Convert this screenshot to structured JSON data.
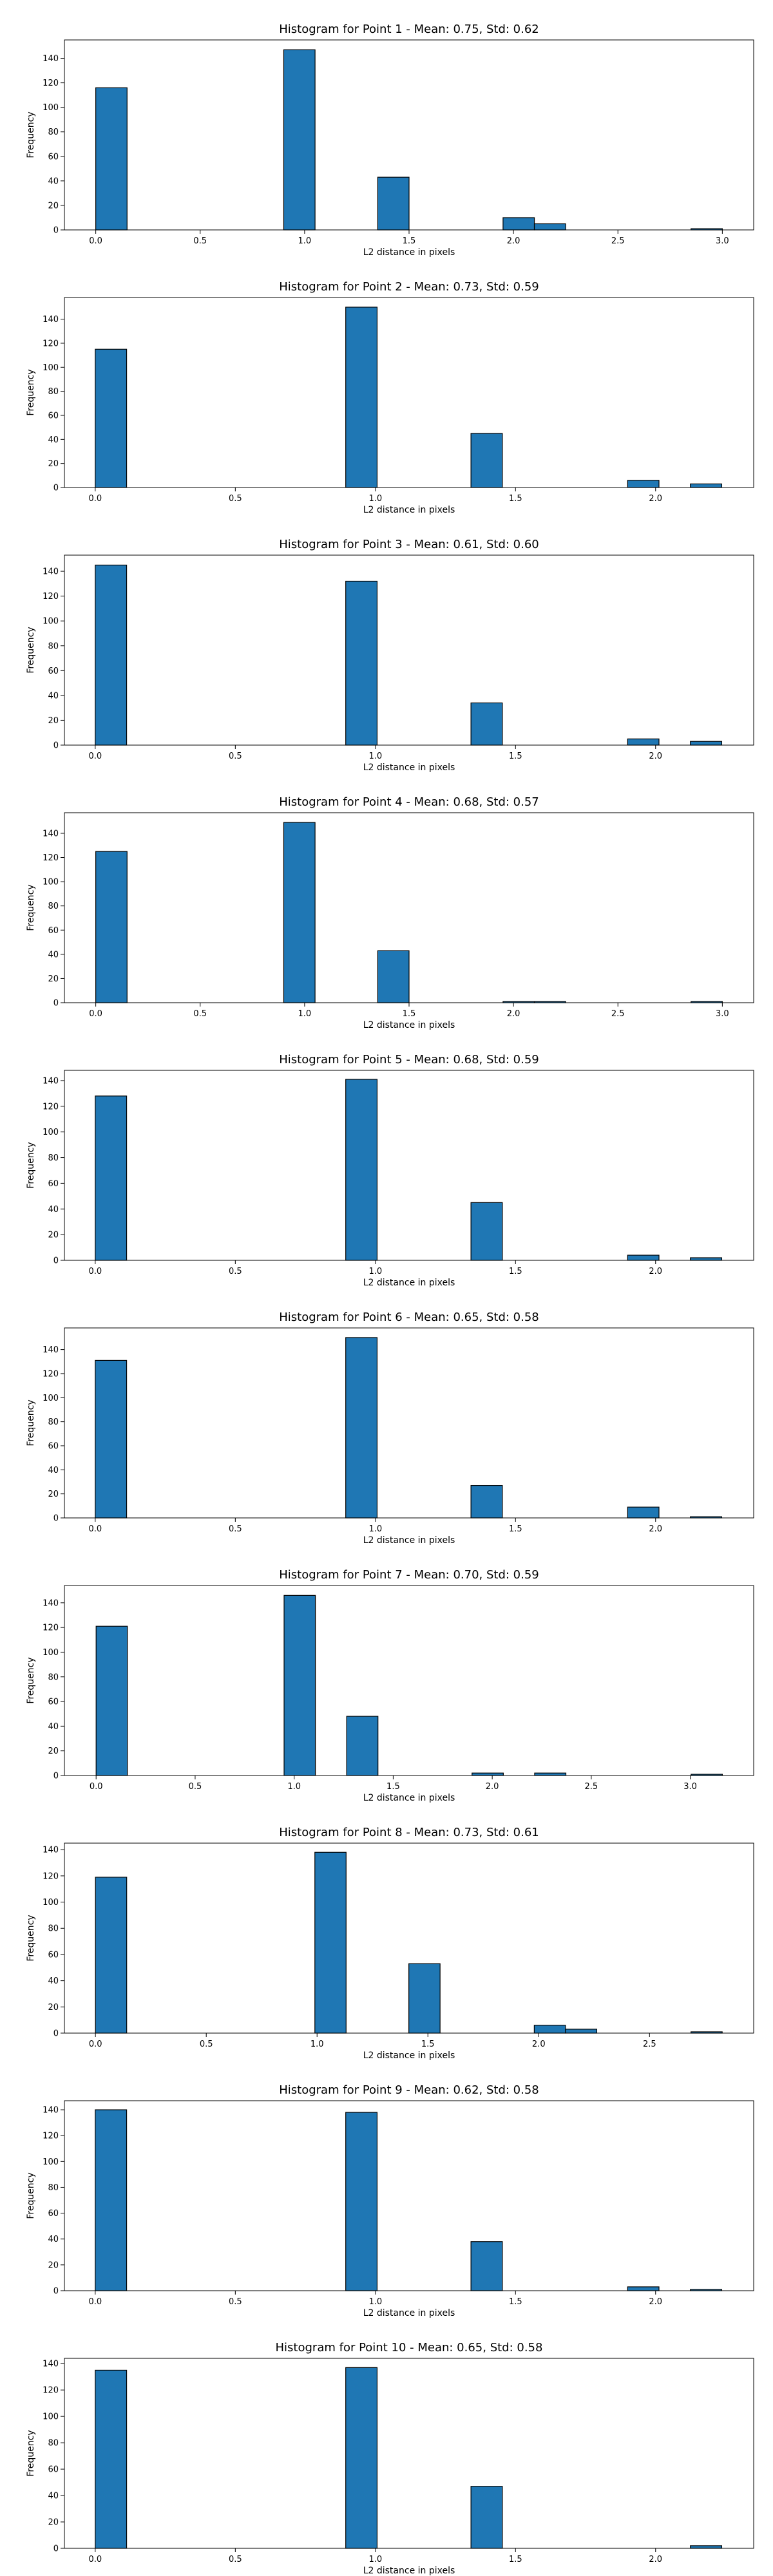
{
  "figure": {
    "bar_color": "#1f77b4",
    "edge_color": "#000000"
  },
  "chart_data": [
    {
      "type": "bar",
      "title": "Histogram for Point 1 - Mean: 0.75, Std: 0.62",
      "xlabel": "L2 distance in pixels",
      "ylabel": "Frequency",
      "xlim": [
        -0.15,
        3.15
      ],
      "ylim": [
        0,
        155
      ],
      "xticks": [
        0.0,
        0.5,
        1.0,
        1.5,
        2.0,
        2.5,
        3.0
      ],
      "xtick_labels": [
        "0.0",
        "0.5",
        "1.0",
        "1.5",
        "2.0",
        "2.5",
        "3.0"
      ],
      "yticks": [
        0,
        20,
        40,
        60,
        80,
        100,
        120,
        140
      ],
      "ytick_labels": [
        "0",
        "20",
        "40",
        "60",
        "80",
        "100",
        "120",
        "140"
      ],
      "bins": [
        {
          "start": 0.0,
          "end": 0.15,
          "value": 116
        },
        {
          "start": 0.9,
          "end": 1.05,
          "value": 147
        },
        {
          "start": 1.35,
          "end": 1.5,
          "value": 43
        },
        {
          "start": 1.95,
          "end": 2.1,
          "value": 10
        },
        {
          "start": 2.1,
          "end": 2.25,
          "value": 5
        },
        {
          "start": 2.85,
          "end": 3.0,
          "value": 1
        }
      ]
    },
    {
      "type": "bar",
      "title": "Histogram for Point 2 - Mean: 0.73, Std: 0.59",
      "xlabel": "L2 distance in pixels",
      "ylabel": "Frequency",
      "xlim": [
        -0.11,
        2.35
      ],
      "ylim": [
        0,
        158
      ],
      "xticks": [
        0.0,
        0.5,
        1.0,
        1.5,
        2.0
      ],
      "xtick_labels": [
        "0.0",
        "0.5",
        "1.0",
        "1.5",
        "2.0"
      ],
      "yticks": [
        0,
        20,
        40,
        60,
        80,
        100,
        120,
        140
      ],
      "ytick_labels": [
        "0",
        "20",
        "40",
        "60",
        "80",
        "100",
        "120",
        "140"
      ],
      "bins": [
        {
          "start": 0.0,
          "end": 0.112,
          "value": 115
        },
        {
          "start": 0.894,
          "end": 1.006,
          "value": 150
        },
        {
          "start": 1.341,
          "end": 1.453,
          "value": 45
        },
        {
          "start": 1.9,
          "end": 2.012,
          "value": 6
        },
        {
          "start": 2.124,
          "end": 2.236,
          "value": 3
        }
      ]
    },
    {
      "type": "bar",
      "title": "Histogram for Point 3 - Mean: 0.61, Std: 0.60",
      "xlabel": "L2 distance in pixels",
      "ylabel": "Frequency",
      "xlim": [
        -0.11,
        2.35
      ],
      "ylim": [
        0,
        153
      ],
      "xticks": [
        0.0,
        0.5,
        1.0,
        1.5,
        2.0
      ],
      "xtick_labels": [
        "0.0",
        "0.5",
        "1.0",
        "1.5",
        "2.0"
      ],
      "yticks": [
        0,
        20,
        40,
        60,
        80,
        100,
        120,
        140
      ],
      "ytick_labels": [
        "0",
        "20",
        "40",
        "60",
        "80",
        "100",
        "120",
        "140"
      ],
      "bins": [
        {
          "start": 0.0,
          "end": 0.112,
          "value": 145
        },
        {
          "start": 0.894,
          "end": 1.006,
          "value": 132
        },
        {
          "start": 1.341,
          "end": 1.453,
          "value": 34
        },
        {
          "start": 1.9,
          "end": 2.012,
          "value": 5
        },
        {
          "start": 2.124,
          "end": 2.236,
          "value": 3
        }
      ]
    },
    {
      "type": "bar",
      "title": "Histogram for Point 4 - Mean: 0.68, Std: 0.57",
      "xlabel": "L2 distance in pixels",
      "ylabel": "Frequency",
      "xlim": [
        -0.15,
        3.15
      ],
      "ylim": [
        0,
        157
      ],
      "xticks": [
        0.0,
        0.5,
        1.0,
        1.5,
        2.0,
        2.5,
        3.0
      ],
      "xtick_labels": [
        "0.0",
        "0.5",
        "1.0",
        "1.5",
        "2.0",
        "2.5",
        "3.0"
      ],
      "yticks": [
        0,
        20,
        40,
        60,
        80,
        100,
        120,
        140
      ],
      "ytick_labels": [
        "0",
        "20",
        "40",
        "60",
        "80",
        "100",
        "120",
        "140"
      ],
      "bins": [
        {
          "start": 0.0,
          "end": 0.15,
          "value": 125
        },
        {
          "start": 0.9,
          "end": 1.05,
          "value": 149
        },
        {
          "start": 1.35,
          "end": 1.5,
          "value": 43
        },
        {
          "start": 1.95,
          "end": 2.1,
          "value": 1
        },
        {
          "start": 2.1,
          "end": 2.25,
          "value": 1
        },
        {
          "start": 2.85,
          "end": 3.0,
          "value": 1
        }
      ]
    },
    {
      "type": "bar",
      "title": "Histogram for Point 5 - Mean: 0.68, Std: 0.59",
      "xlabel": "L2 distance in pixels",
      "ylabel": "Frequency",
      "xlim": [
        -0.11,
        2.35
      ],
      "ylim": [
        0,
        148
      ],
      "xticks": [
        0.0,
        0.5,
        1.0,
        1.5,
        2.0
      ],
      "xtick_labels": [
        "0.0",
        "0.5",
        "1.0",
        "1.5",
        "2.0"
      ],
      "yticks": [
        0,
        20,
        40,
        60,
        80,
        100,
        120,
        140
      ],
      "ytick_labels": [
        "0",
        "20",
        "40",
        "60",
        "80",
        "100",
        "120",
        "140"
      ],
      "bins": [
        {
          "start": 0.0,
          "end": 0.112,
          "value": 128
        },
        {
          "start": 0.894,
          "end": 1.006,
          "value": 141
        },
        {
          "start": 1.341,
          "end": 1.453,
          "value": 45
        },
        {
          "start": 1.9,
          "end": 2.012,
          "value": 4
        },
        {
          "start": 2.124,
          "end": 2.236,
          "value": 2
        }
      ]
    },
    {
      "type": "bar",
      "title": "Histogram for Point 6 - Mean: 0.65, Std: 0.58",
      "xlabel": "L2 distance in pixels",
      "ylabel": "Frequency",
      "xlim": [
        -0.11,
        2.35
      ],
      "ylim": [
        0,
        158
      ],
      "xticks": [
        0.0,
        0.5,
        1.0,
        1.5,
        2.0
      ],
      "xtick_labels": [
        "0.0",
        "0.5",
        "1.0",
        "1.5",
        "2.0"
      ],
      "yticks": [
        0,
        20,
        40,
        60,
        80,
        100,
        120,
        140
      ],
      "ytick_labels": [
        "0",
        "20",
        "40",
        "60",
        "80",
        "100",
        "120",
        "140"
      ],
      "bins": [
        {
          "start": 0.0,
          "end": 0.112,
          "value": 131
        },
        {
          "start": 0.894,
          "end": 1.006,
          "value": 150
        },
        {
          "start": 1.341,
          "end": 1.453,
          "value": 27
        },
        {
          "start": 1.9,
          "end": 2.012,
          "value": 9
        },
        {
          "start": 2.124,
          "end": 2.236,
          "value": 1
        }
      ]
    },
    {
      "type": "bar",
      "title": "Histogram for Point 7 - Mean: 0.70, Std: 0.59",
      "xlabel": "L2 distance in pixels",
      "ylabel": "Frequency",
      "xlim": [
        -0.16,
        3.32
      ],
      "ylim": [
        0,
        154
      ],
      "xticks": [
        0.0,
        0.5,
        1.0,
        1.5,
        2.0,
        2.5,
        3.0
      ],
      "xtick_labels": [
        "0.0",
        "0.5",
        "1.0",
        "1.5",
        "2.0",
        "2.5",
        "3.0"
      ],
      "yticks": [
        0,
        20,
        40,
        60,
        80,
        100,
        120,
        140
      ],
      "ytick_labels": [
        "0",
        "20",
        "40",
        "60",
        "80",
        "100",
        "120",
        "140"
      ],
      "bins": [
        {
          "start": 0.0,
          "end": 0.158,
          "value": 121
        },
        {
          "start": 0.949,
          "end": 1.107,
          "value": 146
        },
        {
          "start": 1.265,
          "end": 1.423,
          "value": 48
        },
        {
          "start": 1.898,
          "end": 2.056,
          "value": 2
        },
        {
          "start": 2.214,
          "end": 2.372,
          "value": 2
        },
        {
          "start": 3.004,
          "end": 3.162,
          "value": 1
        }
      ]
    },
    {
      "type": "bar",
      "title": "Histogram for Point 8 - Mean: 0.73, Std: 0.61",
      "xlabel": "L2 distance in pixels",
      "ylabel": "Frequency",
      "xlim": [
        -0.14,
        2.97
      ],
      "ylim": [
        0,
        145
      ],
      "xticks": [
        0.0,
        0.5,
        1.0,
        1.5,
        2.0,
        2.5
      ],
      "xtick_labels": [
        "0.0",
        "0.5",
        "1.0",
        "1.5",
        "2.0",
        "2.5"
      ],
      "yticks": [
        0,
        20,
        40,
        60,
        80,
        100,
        120,
        140
      ],
      "ytick_labels": [
        "0",
        "20",
        "40",
        "60",
        "80",
        "100",
        "120",
        "140"
      ],
      "bins": [
        {
          "start": 0.0,
          "end": 0.141,
          "value": 119
        },
        {
          "start": 0.99,
          "end": 1.131,
          "value": 138
        },
        {
          "start": 1.414,
          "end": 1.555,
          "value": 53
        },
        {
          "start": 1.98,
          "end": 2.121,
          "value": 6
        },
        {
          "start": 2.121,
          "end": 2.262,
          "value": 3
        },
        {
          "start": 2.687,
          "end": 2.828,
          "value": 1
        }
      ]
    },
    {
      "type": "bar",
      "title": "Histogram for Point 9 - Mean: 0.62, Std: 0.58",
      "xlabel": "L2 distance in pixels",
      "ylabel": "Frequency",
      "xlim": [
        -0.11,
        2.35
      ],
      "ylim": [
        0,
        147
      ],
      "xticks": [
        0.0,
        0.5,
        1.0,
        1.5,
        2.0
      ],
      "xtick_labels": [
        "0.0",
        "0.5",
        "1.0",
        "1.5",
        "2.0"
      ],
      "yticks": [
        0,
        20,
        40,
        60,
        80,
        100,
        120,
        140
      ],
      "ytick_labels": [
        "0",
        "20",
        "40",
        "60",
        "80",
        "100",
        "120",
        "140"
      ],
      "bins": [
        {
          "start": 0.0,
          "end": 0.112,
          "value": 140
        },
        {
          "start": 0.894,
          "end": 1.006,
          "value": 138
        },
        {
          "start": 1.341,
          "end": 1.453,
          "value": 38
        },
        {
          "start": 1.9,
          "end": 2.012,
          "value": 3
        },
        {
          "start": 2.124,
          "end": 2.236,
          "value": 1
        }
      ]
    },
    {
      "type": "bar",
      "title": "Histogram for Point 10 - Mean: 0.65, Std: 0.58",
      "xlabel": "L2 distance in pixels",
      "ylabel": "Frequency",
      "xlim": [
        -0.11,
        2.35
      ],
      "ylim": [
        0,
        144
      ],
      "xticks": [
        0.0,
        0.5,
        1.0,
        1.5,
        2.0
      ],
      "xtick_labels": [
        "0.0",
        "0.5",
        "1.0",
        "1.5",
        "2.0"
      ],
      "yticks": [
        0,
        20,
        40,
        60,
        80,
        100,
        120,
        140
      ],
      "ytick_labels": [
        "0",
        "20",
        "40",
        "60",
        "80",
        "100",
        "120",
        "140"
      ],
      "bins": [
        {
          "start": 0.0,
          "end": 0.112,
          "value": 135
        },
        {
          "start": 0.894,
          "end": 1.006,
          "value": 137
        },
        {
          "start": 1.341,
          "end": 1.453,
          "value": 47
        },
        {
          "start": 2.124,
          "end": 2.236,
          "value": 2
        }
      ]
    }
  ]
}
